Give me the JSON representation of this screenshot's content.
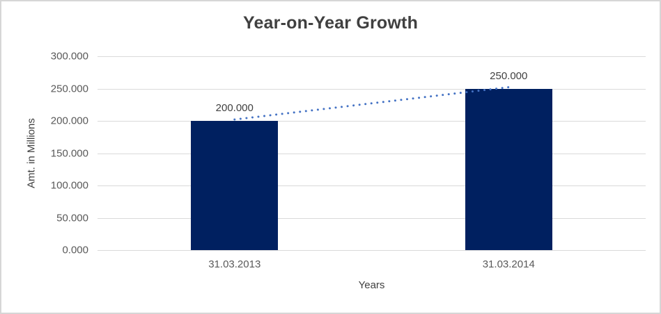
{
  "chart_data": {
    "type": "bar",
    "title": "Year-on-Year Growth",
    "xlabel": "Years",
    "ylabel": "Amt. in Millions",
    "categories": [
      "31.03.2013",
      "31.03.2014"
    ],
    "series": [
      {
        "name": "Amt. in Millions",
        "type": "column",
        "values": [
          200,
          250
        ]
      },
      {
        "name": "Trend",
        "type": "dotted-line",
        "values": [
          200,
          250
        ]
      }
    ],
    "data_labels": [
      "200.000",
      "250.000"
    ],
    "ylim": [
      0,
      300
    ],
    "ytick_values": [
      0,
      50,
      100,
      150,
      200,
      250,
      300
    ],
    "ytick_labels": [
      "0.000",
      "50.000",
      "100.000",
      "150.000",
      "200.000",
      "250.000",
      "300.000"
    ],
    "grid": true,
    "legend_position": "none",
    "colors": {
      "bar": "#002060",
      "trendline": "#4472c4",
      "gridline": "#d9d9d9",
      "tick_text": "#595959",
      "title_text": "#404040",
      "border": "#d6d6d6"
    }
  }
}
